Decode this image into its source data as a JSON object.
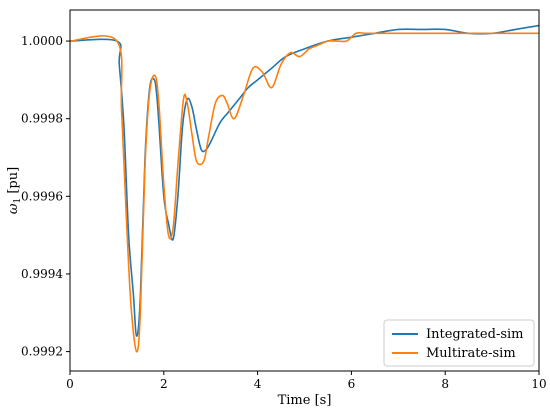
{
  "chart_data": {
    "type": "line",
    "title": "",
    "xlabel": "Time [s]",
    "ylabel_base": "ω",
    "ylabel_sub": "1",
    "ylabel_unit": " [pu]",
    "xlim": [
      0,
      10
    ],
    "ylim": [
      0.99915,
      1.00008
    ],
    "xticks": [
      0,
      2,
      4,
      6,
      8,
      10
    ],
    "xtick_labels": [
      "0",
      "2",
      "4",
      "6",
      "8",
      "10"
    ],
    "yticks": [
      0.9992,
      0.9994,
      0.9996,
      0.9998,
      1.0
    ],
    "ytick_labels": [
      "0.9992",
      "0.9994",
      "0.9996",
      "0.9998",
      "1.0000"
    ],
    "grid": false,
    "legend_position": "bottom-right",
    "series": [
      {
        "name": "Integrated-sim",
        "color": "#1f77b4",
        "x": [
          0,
          1.0,
          1.05,
          1.15,
          1.25,
          1.35,
          1.42,
          1.5,
          1.6,
          1.7,
          1.8,
          1.85,
          1.9,
          2.0,
          2.1,
          2.2,
          2.3,
          2.4,
          2.5,
          2.6,
          2.7,
          2.8,
          2.9,
          3.0,
          3.2,
          3.4,
          3.6,
          3.8,
          4.0,
          4.3,
          4.6,
          5.0,
          5.5,
          6.0,
          6.5,
          7.0,
          7.5,
          8.0,
          8.5,
          9.0,
          9.5,
          10.0
        ],
        "y": [
          1.0,
          1.0,
          0.99994,
          0.99978,
          0.9995,
          0.99935,
          0.99924,
          0.99934,
          0.9997,
          0.99988,
          0.9999,
          0.99986,
          0.99978,
          0.9996,
          0.99953,
          0.99949,
          0.9996,
          0.99978,
          0.99985,
          0.99983,
          0.99977,
          0.99972,
          0.99972,
          0.99974,
          0.99979,
          0.99982,
          0.99985,
          0.99988,
          0.9999,
          0.99993,
          0.99996,
          0.99998,
          1.0,
          1.00001,
          1.00002,
          1.00003,
          1.00003,
          1.00003,
          1.00002,
          1.00002,
          1.00003,
          1.00004
        ]
      },
      {
        "name": "Multirate-sim",
        "color": "#ff7f0e",
        "x": [
          0,
          1.0,
          1.1,
          1.2,
          1.3,
          1.42,
          1.5,
          1.6,
          1.7,
          1.82,
          1.9,
          2.0,
          2.1,
          2.2,
          2.3,
          2.42,
          2.5,
          2.6,
          2.7,
          2.85,
          2.95,
          3.1,
          3.25,
          3.35,
          3.5,
          3.7,
          3.9,
          4.1,
          4.3,
          4.5,
          4.7,
          4.9,
          5.1,
          5.3,
          5.5,
          5.7,
          5.9,
          6.1,
          6.3,
          6.5,
          6.8,
          7.1,
          7.4,
          7.8,
          8.2,
          8.6,
          9.0,
          9.5,
          10.0
        ],
        "y": [
          1.0,
          1.0,
          0.99982,
          0.99955,
          0.99932,
          0.9992,
          0.9993,
          0.99968,
          0.99987,
          0.99991,
          0.99983,
          0.99963,
          0.9995,
          0.99952,
          0.99968,
          0.99985,
          0.99984,
          0.99976,
          0.99969,
          0.99969,
          0.99975,
          0.99984,
          0.99986,
          0.99984,
          0.9998,
          0.99986,
          0.99993,
          0.99992,
          0.99988,
          0.99994,
          0.99997,
          0.99996,
          0.99998,
          0.99999,
          1.0,
          1.0,
          1.0,
          1.00002,
          1.00002,
          1.00002,
          1.00002,
          1.00002,
          1.00002,
          1.00002,
          1.00002,
          1.00002,
          1.00002,
          1.00002,
          1.00002
        ]
      }
    ]
  }
}
